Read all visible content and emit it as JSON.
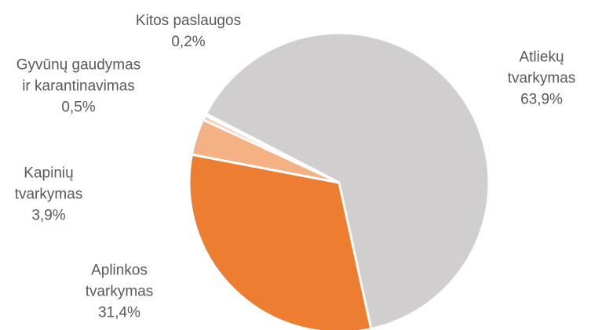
{
  "chart_data": {
    "type": "pie",
    "categories": [
      "Atliekų tvarkymas",
      "Aplinkos tvarkymas",
      "Kapinių tvarkymas",
      "Gyvūnų gaudymas ir karantinavimas",
      "Kitos paslaugos"
    ],
    "values": [
      63.9,
      31.4,
      3.9,
      0.5,
      0.2
    ],
    "value_labels": [
      "63,9%",
      "31,4%",
      "3,9%",
      "0,5%",
      "0,2%"
    ],
    "colors": [
      "#d0cece",
      "#ed7d31",
      "#f4b183",
      "#f8cbad",
      "#fbe5d6"
    ]
  }
}
